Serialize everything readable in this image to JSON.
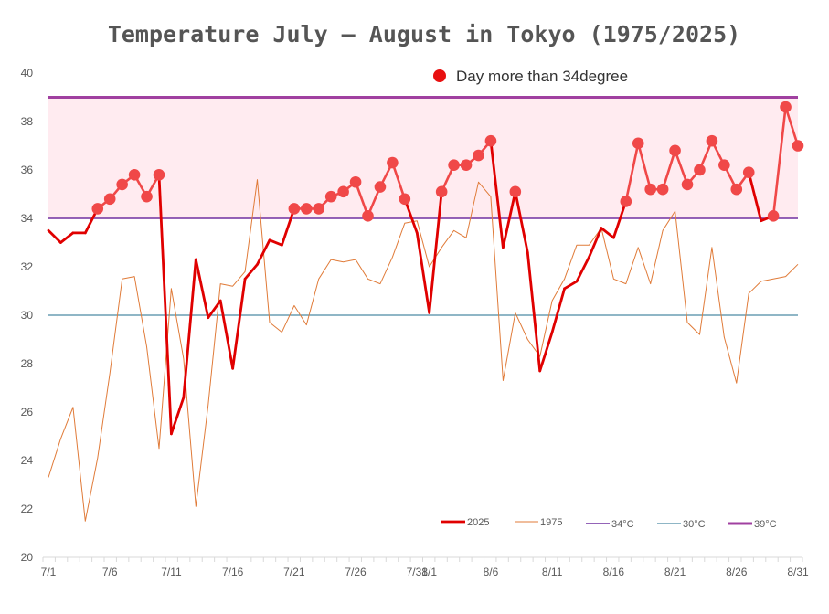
{
  "chart_data": {
    "type": "line",
    "title": "Temperature July – August in Tokyo  (1975/2025)",
    "annotation": "Day more than 34degree",
    "xlabel": "",
    "ylabel": "",
    "ylim": [
      20,
      40
    ],
    "yticks": [
      "20",
      "22",
      "24",
      "26",
      "28",
      "30",
      "32",
      "34",
      "36",
      "38",
      "40"
    ],
    "x_tick_labels": [
      {
        "day": 1,
        "label": "7/1"
      },
      {
        "day": 6,
        "label": "7/6"
      },
      {
        "day": 11,
        "label": "7/11"
      },
      {
        "day": 16,
        "label": "7/16"
      },
      {
        "day": 21,
        "label": "7/21"
      },
      {
        "day": 26,
        "label": "7/26"
      },
      {
        "day": 31,
        "label": "7/31"
      },
      {
        "day": 32,
        "label": "8/1"
      },
      {
        "day": 37,
        "label": "8/6"
      },
      {
        "day": 42,
        "label": "8/11"
      },
      {
        "day": 47,
        "label": "8/16"
      },
      {
        "day": 52,
        "label": "8/21"
      },
      {
        "day": 57,
        "label": "8/26"
      },
      {
        "day": 62,
        "label": "8/31"
      }
    ],
    "threshold_band": [
      34,
      39
    ],
    "series": [
      {
        "name": "2025",
        "color": "#e00000",
        "values": [
          33.5,
          33.0,
          33.4,
          33.4,
          34.4,
          34.8,
          35.4,
          35.8,
          34.9,
          35.8,
          25.1,
          26.6,
          32.3,
          29.9,
          30.6,
          27.8,
          31.5,
          32.1,
          33.1,
          32.9,
          34.4,
          34.4,
          34.4,
          34.9,
          35.1,
          35.5,
          34.1,
          35.3,
          36.3,
          34.8,
          33.4,
          30.1,
          35.1,
          36.2,
          36.2,
          36.6,
          37.2,
          32.8,
          35.1,
          32.6,
          27.7,
          29.3,
          31.1,
          31.4,
          32.4,
          33.6,
          33.2,
          34.7,
          37.1,
          35.2,
          35.2,
          36.8,
          35.4,
          36.0,
          37.2,
          36.2,
          35.2,
          35.9,
          33.9,
          34.1,
          38.6,
          37.0
        ]
      },
      {
        "name": "1975",
        "color": "#e07b39",
        "values": [
          23.3,
          24.9,
          26.2,
          21.5,
          24.1,
          27.6,
          31.5,
          31.6,
          28.7,
          24.5,
          31.1,
          28.2,
          22.1,
          26.3,
          31.3,
          31.2,
          31.8,
          35.6,
          29.7,
          29.3,
          30.4,
          29.6,
          31.5,
          32.3,
          32.2,
          32.3,
          31.5,
          31.3,
          32.4,
          33.8,
          33.9,
          32.0,
          32.8,
          33.5,
          33.2,
          35.5,
          34.9,
          27.3,
          30.1,
          29.0,
          28.3,
          30.6,
          31.5,
          32.9,
          32.9,
          33.6,
          31.5,
          31.3,
          32.8,
          31.3,
          33.5,
          34.3,
          29.7,
          29.2,
          32.8,
          29.1,
          27.2,
          30.9,
          31.4,
          31.5,
          31.6,
          32.1
        ]
      },
      {
        "name": "34°C",
        "color": "#7030a0",
        "values": [
          34
        ]
      },
      {
        "name": "30°C",
        "color": "#1f6e8c",
        "values": [
          30
        ]
      },
      {
        "name": "39°C",
        "color": "#a040a0",
        "values": [
          39
        ]
      }
    ],
    "legend_placement": "bottom-right",
    "grid": false
  }
}
